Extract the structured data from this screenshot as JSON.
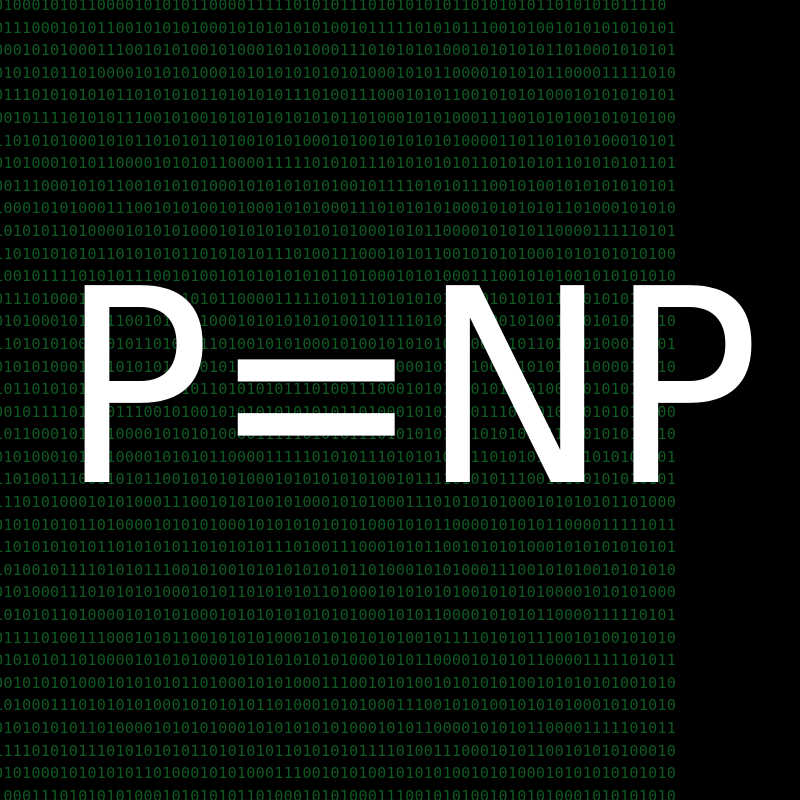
{
  "headline": {
    "text": "P=NP"
  },
  "background": {
    "pattern": "binary-digits",
    "rows": [
      "010001010110000101010110000111110101011101010101011010101011010101011110",
      "0111000101011001010101000101010101010010111110101011100101001010101010101",
      "0001010100011100101010010100010101000111010101010001010101011010001010101",
      "0101010110100001010101000101010101010101000101011000010101011000011111010",
      "0111010101010110101010110101010111010011100010101100101010100010101010101",
      "0010111101010111001010010101010101010110100010101000111001010100101010100",
      "1101010100010101101010110100101010001010010101010100001101101010100010101",
      "0101000101011000010101011000011111010101110101010101101010101101010101101",
      "0011100010101100101010100010101010101001011110101011100101001010101010101",
      "1000101010001110010101001010001010100011101010101000101010101101000101010",
      "1010101101000010101010001010101010101010001010110000101010110000111110101",
      "1101010101011010101011010101011101001110001010110010101010001010101010100",
      "1001011110101011100101001010101010101101000101010001110010101001010101010",
      "0111010001010110001010101100001111101011101010101011010101011010101011010",
      "0101000101011100101010100010101010101001011110101011100101001010101011010",
      "1101010100010101101010110100101010001010010101010100001101101010100010101",
      "0101010001111010101110010100101010101010101000101011000010101011000011110",
      "1011010101010110101010110101010111010011100010101100101010100010101010101",
      "0010111101010111001010010101010101010110100010101000111001010100101010100",
      "1011000101011000010101010000111110101011101010101011010101011010101011010",
      "0101000101011000010101011000011111010101110101010101101010101101010101101",
      "1101001110001010110010101010001010101010100101111010101110010100101010101",
      "1110101000101010001110010101001010001010100011101010101000101010101101000",
      "0101010101101000010101010001010101010101000101011000010101011000011111011",
      "1101010101011010101011010101011101001110001010110010101010001010101010101",
      "1010010111101010111001010010101010101011010001010100011100101010010101010",
      "0101000111010101010001010110101010110100010101010100101010100001010101000",
      "1010101101000010101010001010101010101010001010110000101010110000111110101",
      "0111101001110001010110010101010001010101010100101111010101110010100101010",
      "0101010110100001010101000101010101010100010101100001010101100001111101011",
      "0010101010001010101011010001010100011100101010010101010100101010101001010",
      "1010001110101010100010101010110100010101000111001010100101010100010101010",
      "0101010101101000010101010001010101010100010101100001010101100001111101011",
      "1111010101110101010101101010101101010101111010011100010101100101010100010",
      "0101000101010101101000101010001110010101001010101001010100010101010101010",
      "1000111010101010001010101011010001010100011100101010010101010001010101010"
    ]
  }
}
